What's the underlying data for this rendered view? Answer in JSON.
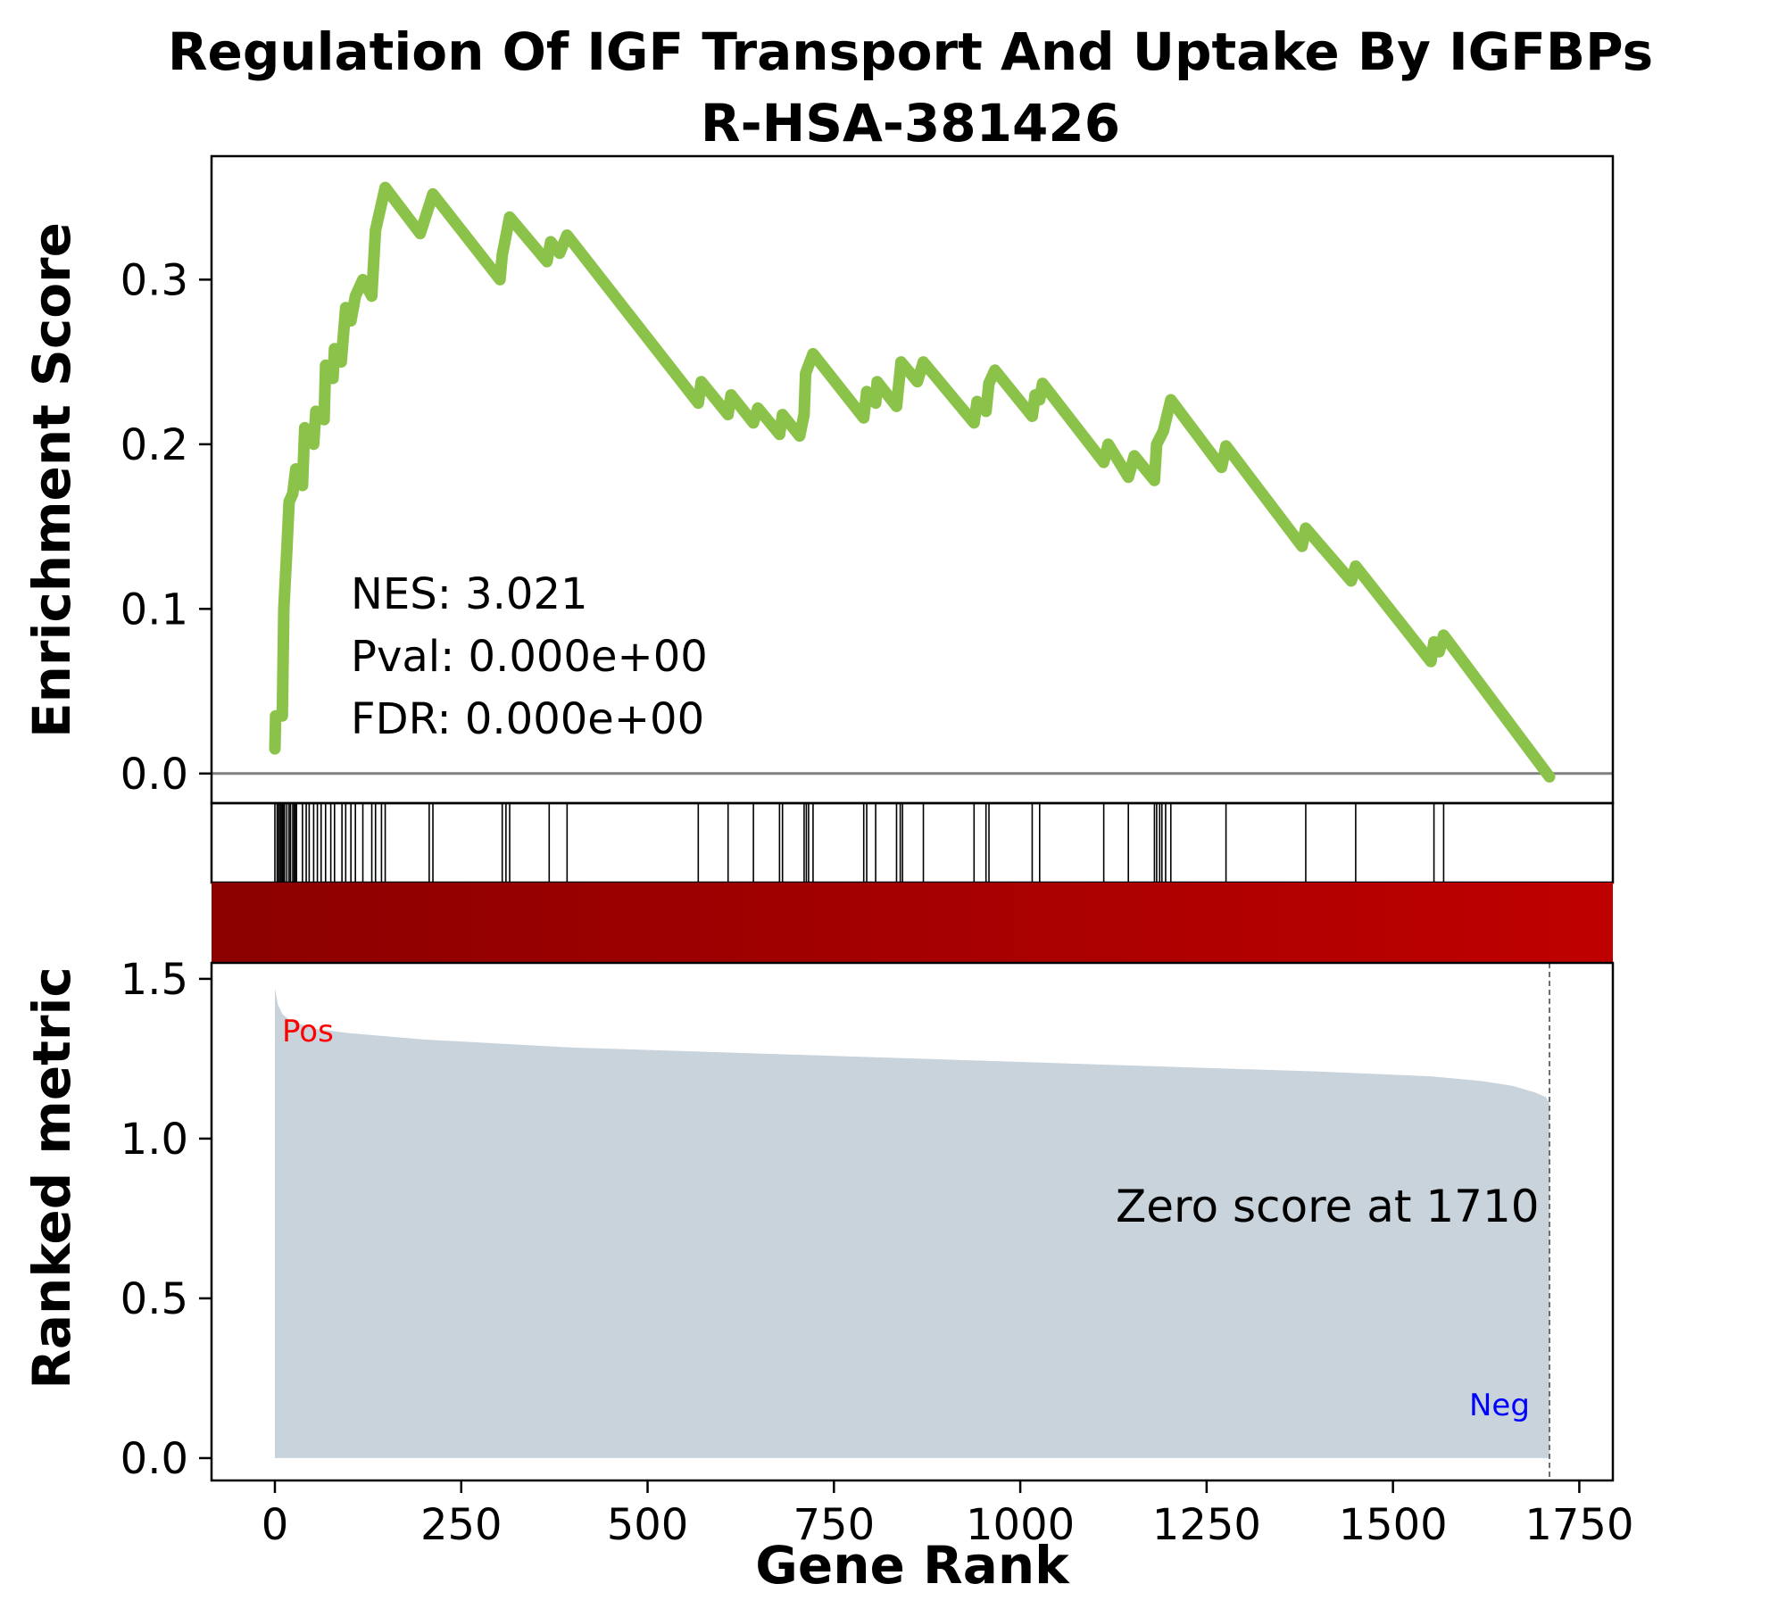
{
  "chart_data": {
    "type": "line",
    "title": "Regulation Of IGF Transport And Uptake By IGFBPs",
    "subtitle": "R-HSA-381426",
    "xlabel": "Gene Rank",
    "ylabel_top": "Enrichment Score",
    "ylabel_bottom": "Ranked metric",
    "xlim": [
      -85,
      1795
    ],
    "xticks": [
      0,
      250,
      500,
      750,
      1000,
      1250,
      1500,
      1750
    ],
    "es_ylim": [
      -0.018,
      0.375
    ],
    "es_yticks": [
      "0.0",
      "0.1",
      "0.2",
      "0.3"
    ],
    "metric_ylim": [
      -0.07,
      1.55
    ],
    "metric_yticks": [
      "0.0",
      "0.5",
      "1.0",
      "1.5"
    ],
    "stats": {
      "nes": "NES: 3.021",
      "pval": "Pval: 0.000e+00",
      "fdr": "FDR: 0.000e+00"
    },
    "zero_score_label": "Zero score at 1710",
    "zero_score_rank": 1710,
    "pos_label": "Pos",
    "neg_label": "Neg",
    "colors": {
      "es_line": "#8bc34a",
      "metric_fill": "#c8d3dc",
      "heat_start": "#8b0000",
      "heat_end": "#bf0000",
      "pos": "#ff0000",
      "neg": "#0000ff",
      "zero_line": "#808080"
    },
    "es_series": [
      {
        "x": 0,
        "y": 0.015
      },
      {
        "x": 1,
        "y": 0.035
      },
      {
        "x": 10,
        "y": 0.035
      },
      {
        "x": 12,
        "y": 0.1
      },
      {
        "x": 16,
        "y": 0.135
      },
      {
        "x": 19,
        "y": 0.165
      },
      {
        "x": 24,
        "y": 0.17
      },
      {
        "x": 28,
        "y": 0.185
      },
      {
        "x": 37,
        "y": 0.175
      },
      {
        "x": 40,
        "y": 0.21
      },
      {
        "x": 52,
        "y": 0.2
      },
      {
        "x": 55,
        "y": 0.22
      },
      {
        "x": 66,
        "y": 0.215
      },
      {
        "x": 68,
        "y": 0.248
      },
      {
        "x": 78,
        "y": 0.24
      },
      {
        "x": 80,
        "y": 0.258
      },
      {
        "x": 89,
        "y": 0.25
      },
      {
        "x": 95,
        "y": 0.283
      },
      {
        "x": 102,
        "y": 0.275
      },
      {
        "x": 108,
        "y": 0.29
      },
      {
        "x": 118,
        "y": 0.3
      },
      {
        "x": 130,
        "y": 0.29
      },
      {
        "x": 135,
        "y": 0.33
      },
      {
        "x": 148,
        "y": 0.356
      },
      {
        "x": 195,
        "y": 0.328
      },
      {
        "x": 212,
        "y": 0.352
      },
      {
        "x": 302,
        "y": 0.3
      },
      {
        "x": 305,
        "y": 0.315
      },
      {
        "x": 315,
        "y": 0.338
      },
      {
        "x": 365,
        "y": 0.311
      },
      {
        "x": 370,
        "y": 0.323
      },
      {
        "x": 382,
        "y": 0.316
      },
      {
        "x": 392,
        "y": 0.327
      },
      {
        "x": 568,
        "y": 0.225
      },
      {
        "x": 572,
        "y": 0.238
      },
      {
        "x": 608,
        "y": 0.218
      },
      {
        "x": 612,
        "y": 0.23
      },
      {
        "x": 642,
        "y": 0.213
      },
      {
        "x": 648,
        "y": 0.222
      },
      {
        "x": 677,
        "y": 0.206
      },
      {
        "x": 681,
        "y": 0.218
      },
      {
        "x": 704,
        "y": 0.205
      },
      {
        "x": 710,
        "y": 0.218
      },
      {
        "x": 712,
        "y": 0.243
      },
      {
        "x": 722,
        "y": 0.255
      },
      {
        "x": 790,
        "y": 0.216
      },
      {
        "x": 794,
        "y": 0.232
      },
      {
        "x": 806,
        "y": 0.225
      },
      {
        "x": 808,
        "y": 0.238
      },
      {
        "x": 834,
        "y": 0.223
      },
      {
        "x": 840,
        "y": 0.25
      },
      {
        "x": 862,
        "y": 0.238
      },
      {
        "x": 870,
        "y": 0.25
      },
      {
        "x": 938,
        "y": 0.213
      },
      {
        "x": 942,
        "y": 0.226
      },
      {
        "x": 954,
        "y": 0.22
      },
      {
        "x": 958,
        "y": 0.237
      },
      {
        "x": 966,
        "y": 0.245
      },
      {
        "x": 1016,
        "y": 0.217
      },
      {
        "x": 1020,
        "y": 0.23
      },
      {
        "x": 1026,
        "y": 0.227
      },
      {
        "x": 1030,
        "y": 0.237
      },
      {
        "x": 1112,
        "y": 0.189
      },
      {
        "x": 1118,
        "y": 0.2
      },
      {
        "x": 1145,
        "y": 0.18
      },
      {
        "x": 1153,
        "y": 0.193
      },
      {
        "x": 1180,
        "y": 0.178
      },
      {
        "x": 1183,
        "y": 0.2
      },
      {
        "x": 1192,
        "y": 0.208
      },
      {
        "x": 1202,
        "y": 0.227
      },
      {
        "x": 1270,
        "y": 0.186
      },
      {
        "x": 1276,
        "y": 0.199
      },
      {
        "x": 1378,
        "y": 0.138
      },
      {
        "x": 1383,
        "y": 0.149
      },
      {
        "x": 1444,
        "y": 0.117
      },
      {
        "x": 1450,
        "y": 0.126
      },
      {
        "x": 1551,
        "y": 0.068
      },
      {
        "x": 1555,
        "y": 0.08
      },
      {
        "x": 1562,
        "y": 0.074
      },
      {
        "x": 1568,
        "y": 0.084
      },
      {
        "x": 1710,
        "y": -0.002
      }
    ],
    "hits": [
      0,
      3,
      5,
      6,
      8,
      10,
      11,
      13,
      16,
      19,
      21,
      24,
      26,
      28,
      29,
      37,
      42,
      46,
      52,
      57,
      62,
      68,
      75,
      80,
      90,
      95,
      102,
      108,
      118,
      130,
      135,
      143,
      148,
      207,
      212,
      305,
      310,
      315,
      368,
      392,
      568,
      608,
      642,
      677,
      681,
      710,
      713,
      716,
      722,
      790,
      794,
      806,
      834,
      839,
      842,
      870,
      938,
      954,
      958,
      1016,
      1026,
      1112,
      1145,
      1180,
      1183,
      1187,
      1190,
      1195,
      1202,
      1276,
      1383,
      1450,
      1555,
      1568
    ],
    "metric_series": [
      {
        "x": 0,
        "y": 1.47
      },
      {
        "x": 4,
        "y": 1.42
      },
      {
        "x": 10,
        "y": 1.39
      },
      {
        "x": 20,
        "y": 1.37
      },
      {
        "x": 50,
        "y": 1.345
      },
      {
        "x": 100,
        "y": 1.33
      },
      {
        "x": 200,
        "y": 1.31
      },
      {
        "x": 400,
        "y": 1.285
      },
      {
        "x": 600,
        "y": 1.27
      },
      {
        "x": 800,
        "y": 1.255
      },
      {
        "x": 1000,
        "y": 1.24
      },
      {
        "x": 1200,
        "y": 1.225
      },
      {
        "x": 1400,
        "y": 1.21
      },
      {
        "x": 1550,
        "y": 1.195
      },
      {
        "x": 1620,
        "y": 1.18
      },
      {
        "x": 1660,
        "y": 1.165
      },
      {
        "x": 1690,
        "y": 1.145
      },
      {
        "x": 1705,
        "y": 1.13
      },
      {
        "x": 1710,
        "y": 1.11
      }
    ]
  }
}
